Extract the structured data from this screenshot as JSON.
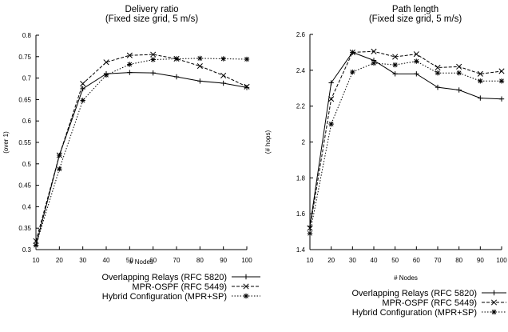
{
  "chart_data": [
    {
      "type": "line",
      "title": "Delivery ratio",
      "subtitle": "(Fixed size grid, 5 m/s)",
      "xlabel": "# Nodes",
      "ylabel": "(over 1)",
      "xlim": [
        10,
        100
      ],
      "ylim": [
        0.3,
        0.8
      ],
      "xticks": [
        "10",
        "20",
        "30",
        "40",
        "50",
        "60",
        "70",
        "80",
        "90",
        "100"
      ],
      "yticks": [
        "0.3",
        "0.35",
        "0.4",
        "0.45",
        "0.5",
        "0.55",
        "0.6",
        "0.65",
        "0.7",
        "0.75",
        "0.8"
      ],
      "grid": false,
      "x": [
        10,
        20,
        30,
        40,
        50,
        60,
        70,
        80,
        90,
        100
      ],
      "series": [
        {
          "name": "Overlapping Relays (RFC 5820)",
          "style": "solid",
          "marker": "plus",
          "values": [
            0.31,
            0.52,
            0.675,
            0.71,
            0.713,
            0.712,
            0.703,
            0.693,
            0.688,
            0.678
          ]
        },
        {
          "name": "MPR-OSPF (RFC 5449)",
          "style": "dashed",
          "marker": "x",
          "values": [
            0.32,
            0.52,
            0.687,
            0.737,
            0.753,
            0.755,
            0.745,
            0.728,
            0.706,
            0.68
          ]
        },
        {
          "name": "Hybrid Configuration (MPR+SP)",
          "style": "dotted",
          "marker": "star",
          "values": [
            0.31,
            0.488,
            0.648,
            0.707,
            0.732,
            0.743,
            0.745,
            0.746,
            0.745,
            0.744
          ]
        }
      ],
      "legend": "below"
    },
    {
      "type": "line",
      "title": "Path length",
      "subtitle": "(Fixed size grid, 5 m/s)",
      "xlabel": "# Nodes",
      "ylabel": "(# hops)",
      "xlim": [
        10,
        100
      ],
      "ylim": [
        1.4,
        2.6
      ],
      "xticks": [
        "10",
        "20",
        "30",
        "40",
        "50",
        "60",
        "70",
        "80",
        "90",
        "100"
      ],
      "yticks": [
        "1.4",
        "1.6",
        "1.8",
        "2",
        "2.2",
        "2.4",
        "2.6"
      ],
      "grid": false,
      "x": [
        10,
        20,
        30,
        40,
        50,
        60,
        70,
        80,
        90,
        100
      ],
      "series": [
        {
          "name": "Overlapping Relays (RFC 5820)",
          "style": "solid",
          "marker": "plus",
          "values": [
            1.53,
            2.33,
            2.5,
            2.455,
            2.38,
            2.38,
            2.305,
            2.29,
            2.245,
            2.24
          ]
        },
        {
          "name": "MPR-OSPF (RFC 5449)",
          "style": "dashed",
          "marker": "x",
          "values": [
            1.52,
            2.24,
            2.5,
            2.505,
            2.475,
            2.49,
            2.415,
            2.42,
            2.38,
            2.395
          ]
        },
        {
          "name": "Hybrid Configuration (MPR+SP)",
          "style": "dotted",
          "marker": "star",
          "values": [
            1.49,
            2.1,
            2.39,
            2.44,
            2.43,
            2.45,
            2.385,
            2.385,
            2.34,
            2.34
          ]
        }
      ],
      "legend": "below"
    }
  ]
}
